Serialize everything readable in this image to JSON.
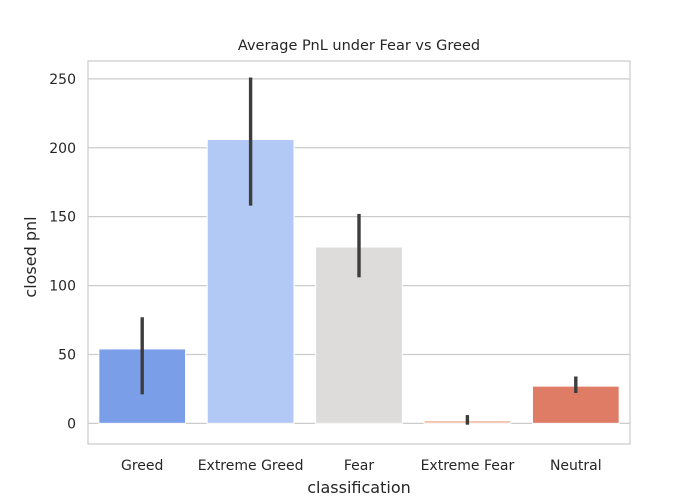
{
  "chart_data": {
    "type": "bar",
    "title": "Average PnL under Fear vs Greed",
    "xlabel": "classification",
    "ylabel": "closed pnl",
    "categories": [
      "Greed",
      "Extreme Greed",
      "Fear",
      "Extreme Fear",
      "Neutral"
    ],
    "values": [
      54,
      206,
      128,
      2,
      27
    ],
    "ci_low": [
      21,
      158,
      106,
      -1,
      22
    ],
    "ci_high": [
      77,
      251,
      152,
      6,
      34
    ],
    "colors": [
      "#7b9ee9",
      "#b2c9f5",
      "#dddcdb",
      "#f5c1a9",
      "#df7c66"
    ],
    "ylim": [
      -15,
      263
    ],
    "yticks": [
      0,
      50,
      100,
      150,
      200,
      250
    ],
    "grid": "y",
    "legend": "none"
  }
}
